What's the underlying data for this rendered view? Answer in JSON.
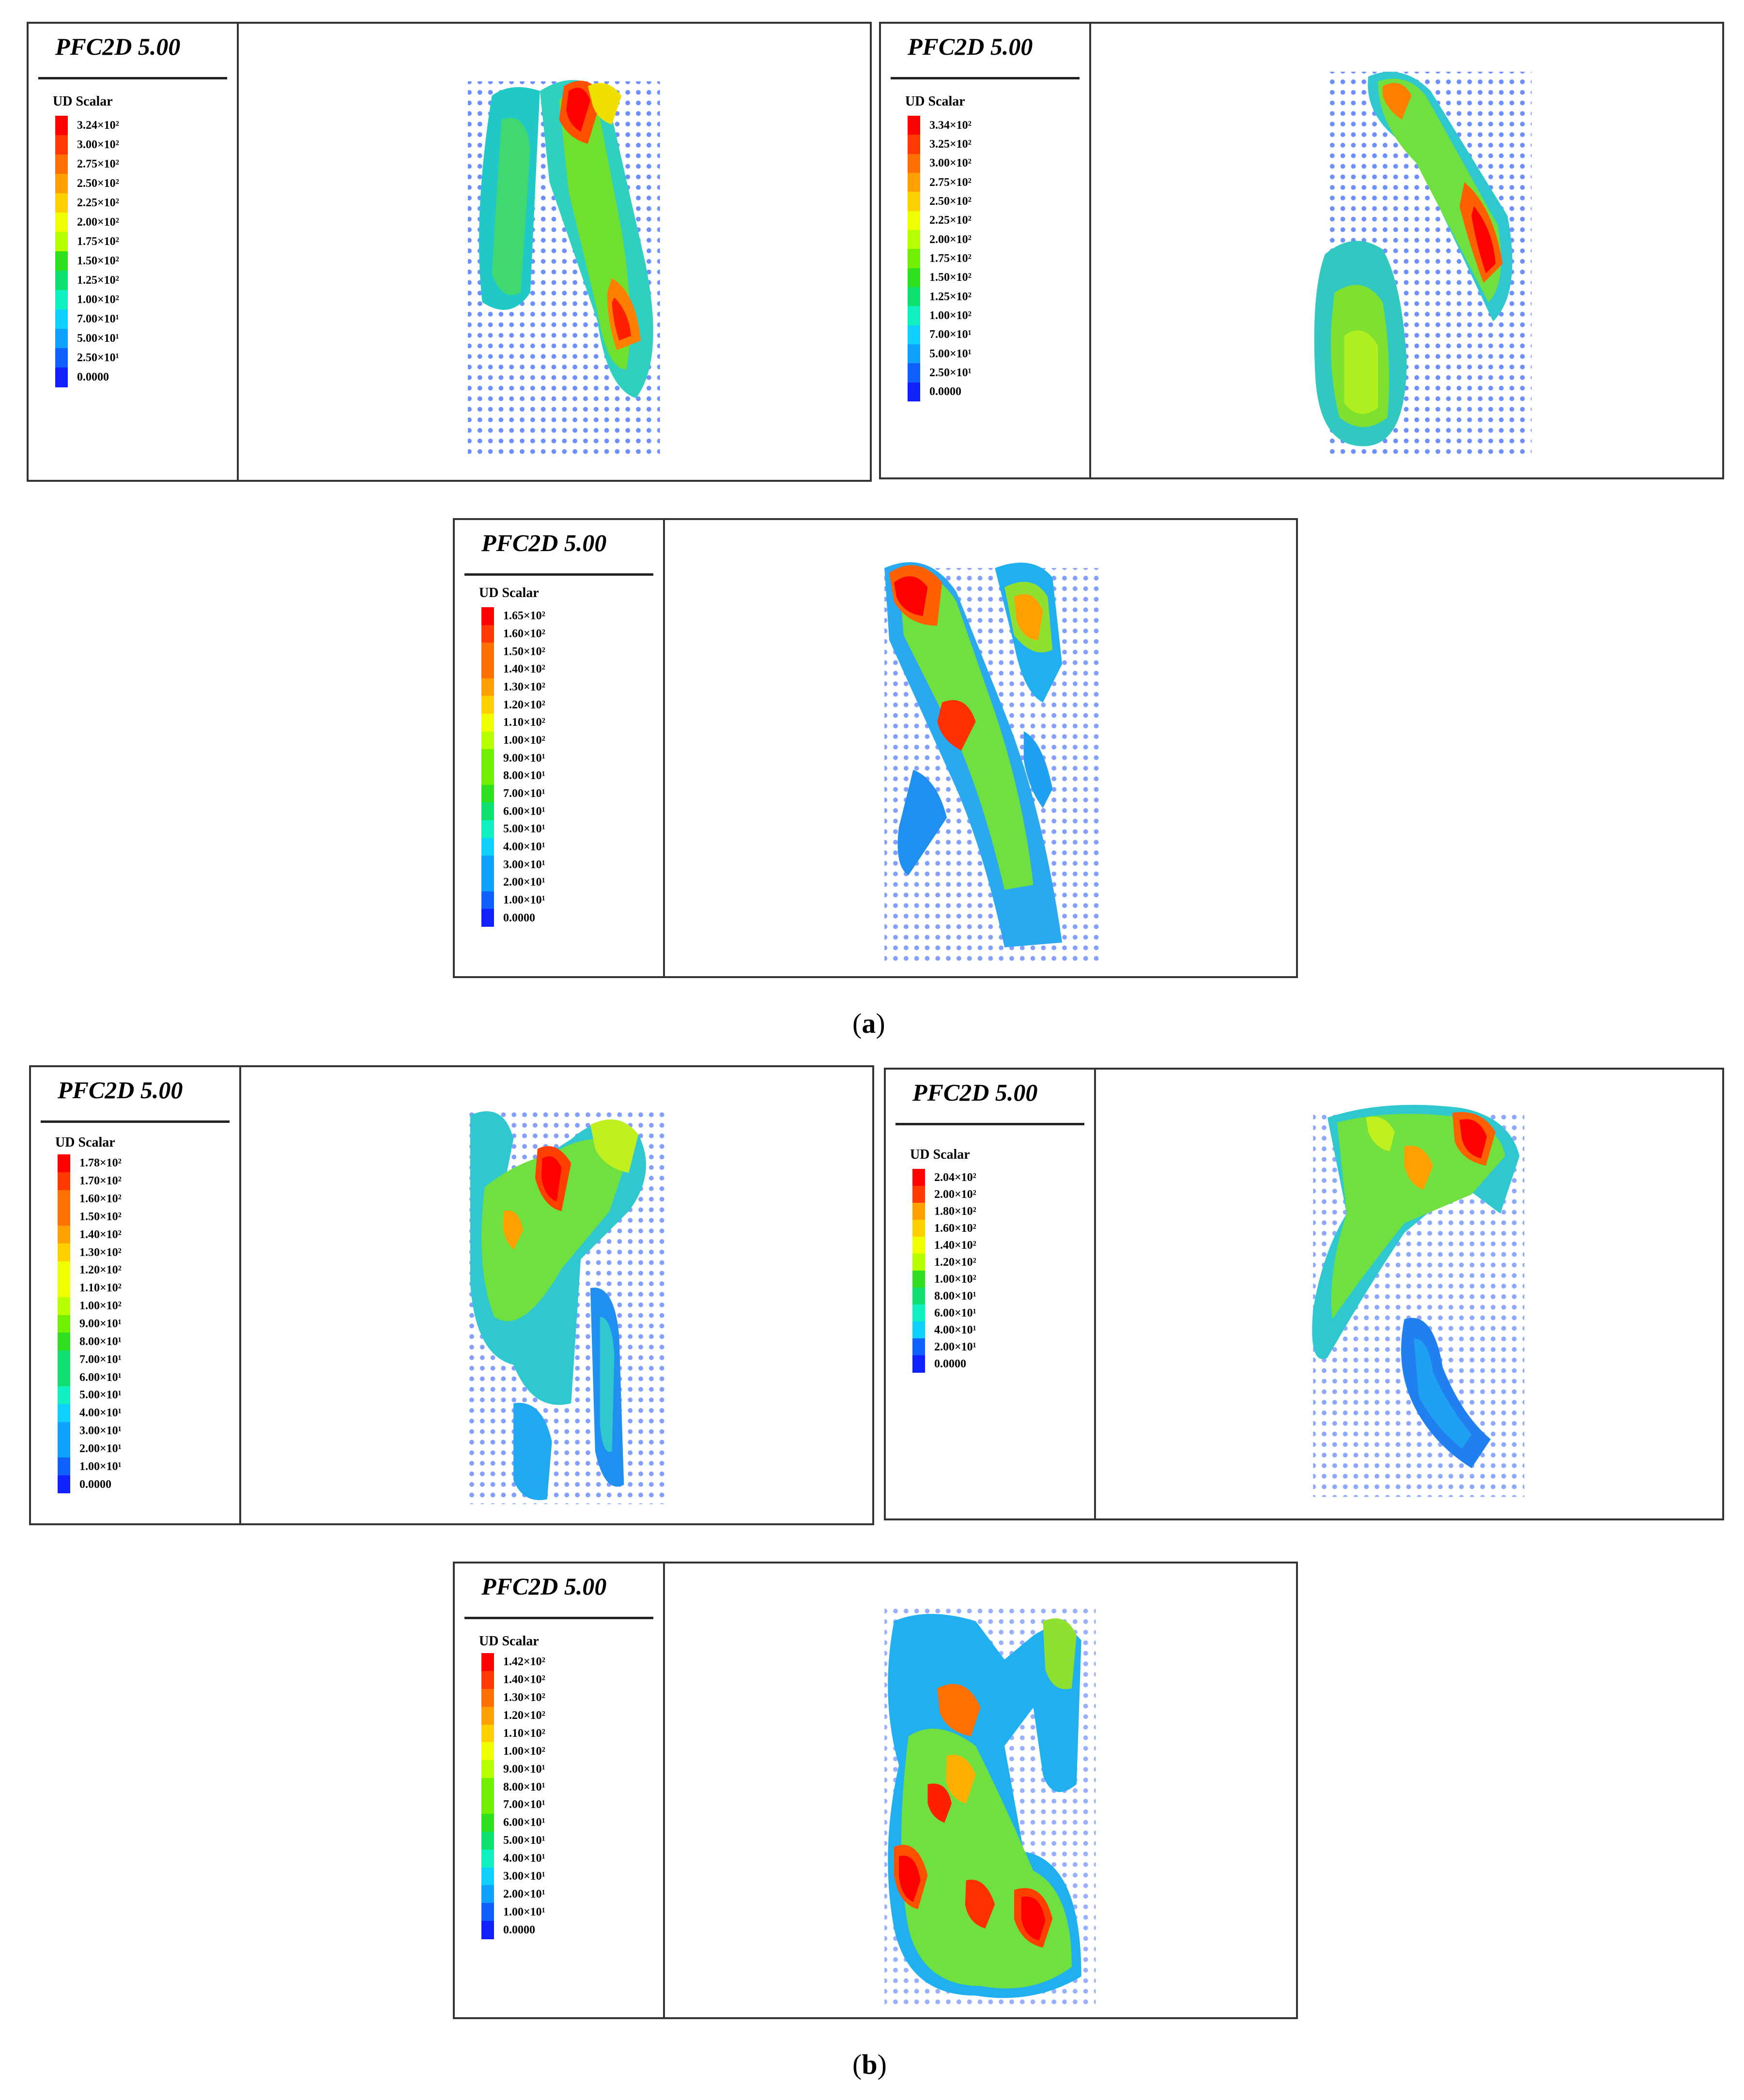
{
  "sections": [
    {
      "caption": "(a)",
      "caption_letter": "a"
    },
    {
      "caption": "(b)",
      "caption_letter": "b"
    }
  ],
  "panels": [
    {
      "app_title": "PFC2D 5.00",
      "legend_title": "UD Scalar",
      "ticks": [
        "3.24×10²",
        "3.00×10²",
        "2.75×10²",
        "2.50×10²",
        "2.25×10²",
        "2.00×10²",
        "1.75×10²",
        "1.50×10²",
        "1.25×10²",
        "1.00×10²",
        "7.00×10¹",
        "5.00×10¹",
        "2.50×10¹",
        "0.0000"
      ]
    },
    {
      "app_title": "PFC2D 5.00",
      "legend_title": "UD Scalar",
      "ticks": [
        "3.34×10²",
        "3.25×10²",
        "3.00×10²",
        "2.75×10²",
        "2.50×10²",
        "2.25×10²",
        "2.00×10²",
        "1.75×10²",
        "1.50×10²",
        "1.25×10²",
        "1.00×10²",
        "7.00×10¹",
        "5.00×10¹",
        "2.50×10¹",
        "0.0000"
      ]
    },
    {
      "app_title": "PFC2D 5.00",
      "legend_title": "UD Scalar",
      "ticks": [
        "1.65×10²",
        "1.60×10²",
        "1.50×10²",
        "1.40×10²",
        "1.30×10²",
        "1.20×10²",
        "1.10×10²",
        "1.00×10²",
        "9.00×10¹",
        "8.00×10¹",
        "7.00×10¹",
        "6.00×10¹",
        "5.00×10¹",
        "4.00×10¹",
        "3.00×10¹",
        "2.00×10¹",
        "1.00×10¹",
        "0.0000"
      ]
    },
    {
      "app_title": "PFC2D 5.00",
      "legend_title": "UD Scalar",
      "ticks": [
        "1.78×10²",
        "1.70×10²",
        "1.60×10²",
        "1.50×10²",
        "1.40×10²",
        "1.30×10²",
        "1.20×10²",
        "1.10×10²",
        "1.00×10²",
        "9.00×10¹",
        "8.00×10¹",
        "7.00×10¹",
        "6.00×10¹",
        "5.00×10¹",
        "4.00×10¹",
        "3.00×10¹",
        "2.00×10¹",
        "1.00×10¹",
        "0.0000"
      ]
    },
    {
      "app_title": "PFC2D 5.00",
      "legend_title": "UD Scalar",
      "ticks": [
        "2.04×10²",
        "2.00×10²",
        "1.80×10²",
        "1.60×10²",
        "1.40×10²",
        "1.20×10²",
        "1.00×10²",
        "8.00×10¹",
        "6.00×10¹",
        "4.00×10¹",
        "2.00×10¹",
        "0.0000"
      ]
    },
    {
      "app_title": "PFC2D 5.00",
      "legend_title": "UD Scalar",
      "ticks": [
        "1.42×10²",
        "1.40×10²",
        "1.30×10²",
        "1.20×10²",
        "1.10×10²",
        "1.00×10²",
        "9.00×10¹",
        "8.00×10¹",
        "7.00×10¹",
        "6.00×10¹",
        "5.00×10¹",
        "4.00×10¹",
        "3.00×10¹",
        "2.00×10¹",
        "1.00×10¹",
        "0.0000"
      ]
    }
  ],
  "colors": {
    "scale": [
      "#ff0000",
      "#ff3a00",
      "#ff7000",
      "#ffa000",
      "#ffd000",
      "#f0ff00",
      "#b8ff00",
      "#70f000",
      "#30e020",
      "#10e070",
      "#10f0c0",
      "#10d0ff",
      "#10a0ff",
      "#1060ff",
      "#1020ff"
    ],
    "frame": "#333333"
  }
}
